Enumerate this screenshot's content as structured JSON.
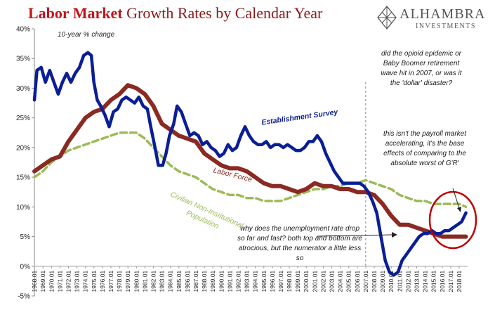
{
  "title": {
    "bold": "Labor Market",
    "rest": " Growth Rates by Calendar Year"
  },
  "logo": {
    "name": "ALHAMBRA",
    "sub": "INVESTMENTS",
    "icon": "diamond-lattice-icon"
  },
  "subtitle": "10-year % change",
  "annotations": {
    "opioid": "did the opioid epidemic or Baby Boomer retirement wave hit in 2007, or was it the 'dollar' disaster?",
    "payroll": "this isn't the payroll market accelerating, it's the base effects of comparing to the absolute worst of G'R'",
    "unemployment": "why does the unemployment rate drop so far and fast? both top and bottom are atrocious, but the numerator a little less so"
  },
  "colors": {
    "establishment": "#0a1e96",
    "labor_force": "#8b2a22",
    "population": "#9bbb59",
    "highlight": "#c00000",
    "dashed_line": "#6f8bb0"
  },
  "chart_data": {
    "type": "line",
    "ylim": [
      -5,
      40
    ],
    "y_ticks": [
      "-5%",
      "0%",
      "5%",
      "10%",
      "15%",
      "20%",
      "25%",
      "30%",
      "35%",
      "40%"
    ],
    "x_ticks": [
      "1968.01",
      "1969.01",
      "1970.01",
      "1971.01",
      "1972.01",
      "1973.01",
      "1974.01",
      "1975.01",
      "1976.01",
      "1977.01",
      "1978.01",
      "1979.01",
      "1980.01",
      "1981.01",
      "1982.01",
      "1983.01",
      "1984.01",
      "1985.01",
      "1986.01",
      "1987.01",
      "1988.01",
      "1989.01",
      "1990.01",
      "1991.01",
      "1992.01",
      "1993.01",
      "1994.01",
      "1995.01",
      "1996.01",
      "1997.01",
      "1998.01",
      "1999.01",
      "2000.01",
      "2001.01",
      "2002.01",
      "2003.01",
      "2004.01",
      "2005.01",
      "2006.01",
      "2007.01",
      "2008.01",
      "2009.01",
      "2010.01",
      "2011.01",
      "2012.01",
      "2013.01",
      "2014.01",
      "2015.01",
      "2016.01",
      "2017.01",
      "2018.01"
    ],
    "xlim": [
      1968.0,
      2019.0
    ],
    "vertical_marker_x": 2007.0,
    "series": [
      {
        "name": "Establishment Survey",
        "points": [
          [
            1968.0,
            28
          ],
          [
            1968.3,
            33
          ],
          [
            1968.8,
            33.5
          ],
          [
            1969.3,
            31
          ],
          [
            1969.8,
            33
          ],
          [
            1970.3,
            31
          ],
          [
            1970.8,
            29
          ],
          [
            1971.3,
            31
          ],
          [
            1971.8,
            32.5
          ],
          [
            1972.3,
            31
          ],
          [
            1972.8,
            32.5
          ],
          [
            1973.3,
            33.5
          ],
          [
            1973.8,
            35.5
          ],
          [
            1974.3,
            36
          ],
          [
            1974.7,
            35.5
          ],
          [
            1975.0,
            31
          ],
          [
            1975.4,
            28
          ],
          [
            1975.8,
            27
          ],
          [
            1976.3,
            25.5
          ],
          [
            1976.8,
            23.5
          ],
          [
            1977.3,
            26
          ],
          [
            1977.8,
            26.5
          ],
          [
            1978.3,
            28
          ],
          [
            1978.8,
            28.5
          ],
          [
            1979.3,
            28
          ],
          [
            1979.8,
            27.5
          ],
          [
            1980.3,
            28.5
          ],
          [
            1980.8,
            27
          ],
          [
            1981.3,
            26.5
          ],
          [
            1981.7,
            23.5
          ],
          [
            1982.2,
            20
          ],
          [
            1982.6,
            17
          ],
          [
            1983.1,
            17
          ],
          [
            1983.5,
            19
          ],
          [
            1983.9,
            22
          ],
          [
            1984.4,
            24
          ],
          [
            1984.8,
            27
          ],
          [
            1985.3,
            26
          ],
          [
            1985.8,
            24
          ],
          [
            1986.3,
            22
          ],
          [
            1986.8,
            22.5
          ],
          [
            1987.3,
            22
          ],
          [
            1987.8,
            20.5
          ],
          [
            1988.3,
            21
          ],
          [
            1988.8,
            20
          ],
          [
            1989.3,
            19.5
          ],
          [
            1989.8,
            18.5
          ],
          [
            1990.3,
            19
          ],
          [
            1990.8,
            20.5
          ],
          [
            1991.3,
            19.5
          ],
          [
            1991.8,
            20
          ],
          [
            1992.3,
            22
          ],
          [
            1992.8,
            23.5
          ],
          [
            1993.3,
            22
          ],
          [
            1993.8,
            21
          ],
          [
            1994.3,
            20.5
          ],
          [
            1994.8,
            20.5
          ],
          [
            1995.3,
            21
          ],
          [
            1995.8,
            20
          ],
          [
            1996.3,
            20.5
          ],
          [
            1996.8,
            20.5
          ],
          [
            1997.3,
            20
          ],
          [
            1997.8,
            20.5
          ],
          [
            1998.3,
            20
          ],
          [
            1998.8,
            19.5
          ],
          [
            1999.3,
            19.5
          ],
          [
            1999.8,
            20
          ],
          [
            2000.3,
            21
          ],
          [
            2000.8,
            21
          ],
          [
            2001.3,
            22
          ],
          [
            2001.8,
            21
          ],
          [
            2002.3,
            19
          ],
          [
            2002.8,
            17.5
          ],
          [
            2003.3,
            16
          ],
          [
            2003.8,
            15
          ],
          [
            2004.3,
            14
          ],
          [
            2004.8,
            14
          ],
          [
            2005.3,
            14
          ],
          [
            2005.8,
            14
          ],
          [
            2006.3,
            14
          ],
          [
            2006.8,
            13.5
          ],
          [
            2007.3,
            12.5
          ],
          [
            2007.8,
            11
          ],
          [
            2008.3,
            9
          ],
          [
            2008.8,
            5
          ],
          [
            2009.3,
            1
          ],
          [
            2009.8,
            -1
          ],
          [
            2010.3,
            -1.5
          ],
          [
            2010.8,
            -1
          ],
          [
            2011.3,
            1
          ],
          [
            2011.8,
            2
          ],
          [
            2012.3,
            3
          ],
          [
            2012.8,
            4
          ],
          [
            2013.3,
            5
          ],
          [
            2013.8,
            5.5
          ],
          [
            2014.3,
            5.5
          ],
          [
            2014.8,
            6
          ],
          [
            2015.3,
            5.5
          ],
          [
            2015.8,
            5.5
          ],
          [
            2016.3,
            6
          ],
          [
            2016.8,
            6
          ],
          [
            2017.3,
            6.5
          ],
          [
            2017.8,
            7
          ],
          [
            2018.3,
            7.5
          ],
          [
            2018.8,
            9
          ]
        ]
      },
      {
        "name": "Labor Force",
        "points": [
          [
            1968.0,
            16
          ],
          [
            1969.0,
            17
          ],
          [
            1970.0,
            18
          ],
          [
            1971.0,
            18.5
          ],
          [
            1972.0,
            21
          ],
          [
            1973.0,
            23
          ],
          [
            1974.0,
            25
          ],
          [
            1975.0,
            26
          ],
          [
            1976.0,
            26.5
          ],
          [
            1977.0,
            28
          ],
          [
            1978.0,
            29
          ],
          [
            1979.0,
            30.5
          ],
          [
            1980.0,
            30
          ],
          [
            1981.0,
            29
          ],
          [
            1982.0,
            27
          ],
          [
            1983.0,
            24
          ],
          [
            1984.0,
            23
          ],
          [
            1985.0,
            22
          ],
          [
            1986.0,
            21.5
          ],
          [
            1987.0,
            21
          ],
          [
            1988.0,
            19
          ],
          [
            1989.0,
            18
          ],
          [
            1990.0,
            17
          ],
          [
            1991.0,
            16.5
          ],
          [
            1992.0,
            16.5
          ],
          [
            1993.0,
            16
          ],
          [
            1994.0,
            15
          ],
          [
            1995.0,
            14
          ],
          [
            1996.0,
            13.5
          ],
          [
            1997.0,
            13.5
          ],
          [
            1998.0,
            13
          ],
          [
            1999.0,
            12.5
          ],
          [
            2000.0,
            13
          ],
          [
            2001.0,
            14
          ],
          [
            2002.0,
            13.5
          ],
          [
            2003.0,
            13.5
          ],
          [
            2004.0,
            13
          ],
          [
            2005.0,
            13
          ],
          [
            2006.0,
            12.5
          ],
          [
            2007.0,
            12.5
          ],
          [
            2008.0,
            12
          ],
          [
            2009.0,
            10.5
          ],
          [
            2010.0,
            8.5
          ],
          [
            2011.0,
            7
          ],
          [
            2012.0,
            7
          ],
          [
            2013.0,
            6.5
          ],
          [
            2014.0,
            6
          ],
          [
            2015.0,
            5.5
          ],
          [
            2016.0,
            5
          ],
          [
            2017.0,
            5
          ],
          [
            2018.0,
            5
          ],
          [
            2018.8,
            5
          ]
        ]
      },
      {
        "name": "Civilian Non-Institutional Population",
        "points": [
          [
            1968.0,
            15
          ],
          [
            1969.0,
            16
          ],
          [
            1970.0,
            17.5
          ],
          [
            1971.0,
            18.5
          ],
          [
            1972.0,
            19.5
          ],
          [
            1973.0,
            20
          ],
          [
            1974.0,
            20.5
          ],
          [
            1975.0,
            21
          ],
          [
            1976.0,
            21.5
          ],
          [
            1977.0,
            22
          ],
          [
            1978.0,
            22.5
          ],
          [
            1979.0,
            22.5
          ],
          [
            1980.0,
            22.5
          ],
          [
            1981.0,
            21.5
          ],
          [
            1982.0,
            20
          ],
          [
            1983.0,
            18.5
          ],
          [
            1984.0,
            17
          ],
          [
            1985.0,
            16
          ],
          [
            1986.0,
            15.5
          ],
          [
            1987.0,
            15
          ],
          [
            1988.0,
            14
          ],
          [
            1989.0,
            13
          ],
          [
            1990.0,
            12.5
          ],
          [
            1991.0,
            12
          ],
          [
            1992.0,
            12
          ],
          [
            1993.0,
            11.5
          ],
          [
            1994.0,
            11.5
          ],
          [
            1995.0,
            11
          ],
          [
            1996.0,
            11
          ],
          [
            1997.0,
            11
          ],
          [
            1998.0,
            11.5
          ],
          [
            1999.0,
            12
          ],
          [
            2000.0,
            12.5
          ],
          [
            2001.0,
            13
          ],
          [
            2002.0,
            13
          ],
          [
            2003.0,
            13.5
          ],
          [
            2004.0,
            13.5
          ],
          [
            2005.0,
            14
          ],
          [
            2006.0,
            14
          ],
          [
            2007.0,
            14.5
          ],
          [
            2008.0,
            14
          ],
          [
            2009.0,
            13.5
          ],
          [
            2010.0,
            13
          ],
          [
            2011.0,
            12
          ],
          [
            2012.0,
            11.5
          ],
          [
            2013.0,
            11
          ],
          [
            2014.0,
            11
          ],
          [
            2015.0,
            10.5
          ],
          [
            2016.0,
            10.5
          ],
          [
            2017.0,
            10.5
          ],
          [
            2018.0,
            10.5
          ],
          [
            2018.8,
            10
          ]
        ]
      }
    ]
  }
}
